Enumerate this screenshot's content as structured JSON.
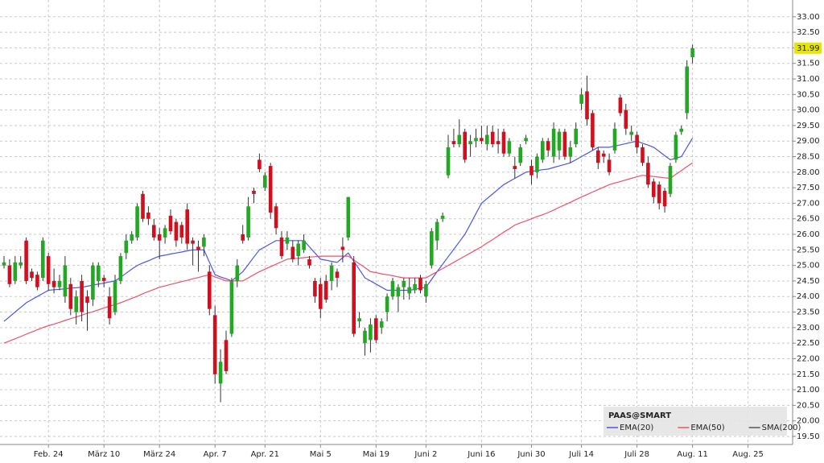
{
  "chart_data": {
    "type": "candlestick",
    "legend_title": "PAAS@SMART",
    "last_price": 31.99,
    "up_color": "#22a822",
    "down_color": "#d0101e",
    "ylim": [
      19.24,
      33.28
    ],
    "yticks": [
      {
        "value": 19.5,
        "label": "19.50"
      },
      {
        "value": 20,
        "label": "20.00"
      },
      {
        "value": 20.5,
        "label": "20.50"
      },
      {
        "value": 21,
        "label": "21.00"
      },
      {
        "value": 21.5,
        "label": "21.50"
      },
      {
        "value": 22,
        "label": "22.00"
      },
      {
        "value": 22.5,
        "label": "22.50"
      },
      {
        "value": 23,
        "label": "23.00"
      },
      {
        "value": 23.5,
        "label": "23.50"
      },
      {
        "value": 24,
        "label": "24.00"
      },
      {
        "value": 24.5,
        "label": "24.50"
      },
      {
        "value": 25,
        "label": "25.00"
      },
      {
        "value": 25.5,
        "label": "25.50"
      },
      {
        "value": 26,
        "label": "26.00"
      },
      {
        "value": 26.5,
        "label": "26.50"
      },
      {
        "value": 27,
        "label": "27.00"
      },
      {
        "value": 27.5,
        "label": "27.50"
      },
      {
        "value": 28,
        "label": "28.00"
      },
      {
        "value": 28.5,
        "label": "28.50"
      },
      {
        "value": 29,
        "label": "29.00"
      },
      {
        "value": 29.5,
        "label": "29.50"
      },
      {
        "value": 30,
        "label": "30.00"
      },
      {
        "value": 30.5,
        "label": "30.50"
      },
      {
        "value": 31,
        "label": "31.00"
      },
      {
        "value": 31.5,
        "label": "31.50"
      },
      {
        "value": 32,
        "label": "32.00"
      },
      {
        "value": 32.5,
        "label": "32.50"
      },
      {
        "value": 33,
        "label": "33.00"
      }
    ],
    "grid": true,
    "categories": [
      null,
      null,
      null,
      null,
      null,
      null,
      null,
      null,
      "Feb. 24",
      null,
      null,
      null,
      null,
      null,
      null,
      null,
      null,
      null,
      "März 10",
      null,
      null,
      null,
      null,
      null,
      null,
      null,
      null,
      null,
      "März 24",
      null,
      null,
      null,
      null,
      null,
      null,
      null,
      null,
      null,
      "Apr. 7",
      null,
      null,
      null,
      null,
      null,
      null,
      null,
      null,
      "Apr. 21",
      null,
      null,
      null,
      null,
      null,
      null,
      null,
      null,
      null,
      "Mai 5",
      null,
      null,
      null,
      null,
      null,
      null,
      null,
      null,
      null,
      "Mai 19",
      null,
      null,
      null,
      null,
      null,
      null,
      null,
      null,
      "Juni 2",
      null,
      null,
      null,
      null,
      null,
      null,
      null,
      null,
      null,
      "Juni 16",
      null,
      null,
      null,
      null,
      null,
      null,
      null,
      null,
      "Juni 30",
      null,
      null,
      null,
      null,
      null,
      null,
      null,
      null,
      "Juli 14",
      null,
      null,
      null,
      null,
      null,
      null,
      null,
      null,
      null,
      "Juli 28",
      null,
      null,
      null,
      null,
      null,
      null,
      null,
      null,
      null,
      "Aug. 11",
      null,
      null,
      null,
      null,
      null,
      null,
      null,
      null,
      null,
      "Aug. 25"
    ],
    "open": [
      25.0,
      25.0,
      24.5,
      25.0,
      25.8,
      24.8,
      24.7,
      24.6,
      25.3,
      24.5,
      24.3,
      24.0,
      24.4,
      23.5,
      24.5,
      24.0,
      23.9,
      24.5,
      24.6,
      24.0,
      23.5,
      24.5,
      25.4,
      25.8,
      25.9,
      27.3,
      26.7,
      26.3,
      26.0,
      25.9,
      26.6,
      26.4,
      26.3,
      26.8,
      25.8,
      25.6,
      25.6,
      24.8,
      23.4,
      21.2,
      22.6,
      22.8,
      24.5,
      26.0,
      25.9,
      27.4,
      28.4,
      27.5,
      28.2,
      26.9,
      25.9,
      25.7,
      25.6,
      25.3,
      25.5,
      25.2,
      24.5,
      24.4,
      24.5,
      24.5,
      24.8,
      25.6,
      25.9,
      25.1,
      23.2,
      22.5,
      22.6,
      23.3,
      23.0,
      23.5,
      24.0,
      24.0,
      24.3,
      24.1,
      24.2,
      24.6,
      24.0,
      25.0,
      25.8,
      26.5,
      27.9,
      29.0,
      28.9,
      29.3,
      28.9,
      29.0,
      29.1,
      28.9,
      29.3,
      29.0,
      29.3,
      28.6,
      28.2,
      28.3,
      29.0,
      28.2,
      28.0,
      28.4,
      29.0,
      28.5,
      28.7,
      29.3,
      28.5,
      28.9,
      30.2,
      30.6,
      29.9,
      28.7,
      28.6,
      28.4,
      28.7,
      30.4,
      30.0,
      29.2,
      29.2,
      28.8,
      28.3,
      27.7,
      27.6,
      27.4,
      27.3,
      28.4,
      29.3,
      29.9,
      31.7,
      null,
      null,
      null,
      null,
      null,
      null,
      null,
      null,
      null,
      null
    ],
    "high": [
      25.3,
      25.2,
      25.3,
      25.3,
      25.9,
      24.9,
      24.8,
      25.9,
      25.4,
      24.9,
      24.7,
      25.3,
      24.6,
      24.2,
      24.7,
      24.2,
      25.1,
      25.1,
      24.7,
      24.3,
      24.7,
      25.4,
      26.0,
      26.1,
      27.0,
      27.4,
      26.9,
      26.5,
      26.2,
      26.3,
      26.8,
      26.5,
      26.4,
      27.0,
      25.9,
      25.8,
      26.0,
      25.0,
      23.7,
      22.3,
      22.9,
      24.6,
      25.2,
      26.3,
      27.2,
      27.5,
      28.6,
      28.0,
      28.3,
      27.0,
      26.1,
      26.1,
      25.8,
      25.8,
      26.0,
      25.3,
      24.6,
      24.6,
      24.7,
      25.1,
      24.9,
      25.9,
      27.2,
      25.3,
      23.5,
      23.0,
      23.3,
      23.4,
      23.3,
      24.1,
      24.6,
      24.4,
      24.6,
      24.6,
      24.6,
      24.7,
      24.5,
      26.2,
      26.5,
      26.7,
      29.2,
      29.4,
      29.7,
      29.4,
      29.2,
      29.4,
      29.5,
      29.5,
      29.5,
      29.4,
      29.4,
      29.1,
      28.5,
      28.9,
      29.2,
      28.4,
      28.6,
      29.1,
      29.1,
      29.6,
      29.4,
      29.4,
      29.0,
      29.6,
      30.7,
      31.1,
      30.0,
      28.8,
      28.7,
      28.6,
      29.6,
      30.5,
      30.2,
      29.5,
      29.3,
      28.9,
      28.5,
      27.8,
      27.7,
      27.5,
      28.3,
      29.3,
      29.5,
      31.6,
      32.1,
      null,
      null,
      null,
      null,
      null,
      null,
      null,
      null,
      null,
      null
    ],
    "low": [
      24.9,
      24.3,
      24.4,
      24.9,
      24.4,
      24.5,
      24.2,
      24.5,
      24.2,
      24.1,
      24.2,
      23.8,
      23.4,
      23.1,
      23.2,
      22.9,
      23.7,
      24.3,
      24.3,
      23.1,
      23.4,
      24.4,
      25.2,
      25.7,
      25.8,
      26.4,
      26.3,
      25.8,
      25.2,
      25.7,
      26.0,
      25.6,
      25.7,
      25.5,
      25.0,
      24.8,
      25.3,
      23.4,
      21.2,
      20.6,
      21.5,
      22.7,
      24.3,
      25.7,
      25.8,
      27.0,
      28.0,
      27.4,
      26.5,
      26.0,
      25.2,
      25.5,
      25.1,
      25.0,
      25.4,
      24.9,
      23.8,
      23.3,
      23.8,
      24.2,
      24.3,
      25.1,
      25.8,
      22.7,
      23.0,
      22.1,
      22.2,
      22.5,
      22.8,
      23.2,
      23.9,
      23.5,
      23.9,
      23.9,
      24.1,
      24.1,
      23.8,
      24.9,
      25.5,
      26.4,
      27.8,
      28.8,
      28.8,
      28.3,
      28.5,
      28.8,
      28.9,
      28.7,
      28.8,
      28.6,
      28.5,
      28.5,
      27.8,
      28.2,
      28.9,
      27.6,
      27.8,
      28.3,
      28.5,
      28.3,
      28.4,
      28.4,
      28.3,
      28.8,
      30.0,
      29.5,
      28.7,
      28.1,
      28.3,
      27.9,
      28.6,
      29.8,
      29.2,
      29.0,
      28.6,
      28.2,
      27.5,
      27.0,
      26.8,
      26.7,
      27.2,
      28.3,
      29.2,
      29.7,
      31.5,
      null,
      null,
      null,
      null,
      null,
      null,
      null,
      null,
      null,
      null
    ],
    "close": [
      25.1,
      24.4,
      25.1,
      25.1,
      24.5,
      24.6,
      24.3,
      25.8,
      24.4,
      24.3,
      24.5,
      25.0,
      23.6,
      24.0,
      23.5,
      23.8,
      25.0,
      25.0,
      24.5,
      23.3,
      24.5,
      25.3,
      25.8,
      26.0,
      26.9,
      26.5,
      26.5,
      25.9,
      25.8,
      26.2,
      26.1,
      25.8,
      25.9,
      25.7,
      25.7,
      25.5,
      25.9,
      23.6,
      21.5,
      21.9,
      21.6,
      24.5,
      25.0,
      25.8,
      26.9,
      27.3,
      28.1,
      27.9,
      26.7,
      26.2,
      25.3,
      25.9,
      25.2,
      25.7,
      25.8,
      25.0,
      24.0,
      23.6,
      23.9,
      25.0,
      24.6,
      25.5,
      27.2,
      22.8,
      23.3,
      22.9,
      23.1,
      22.6,
      23.2,
      24.0,
      24.5,
      24.3,
      24.5,
      24.3,
      24.4,
      24.2,
      24.4,
      26.1,
      26.4,
      26.6,
      28.8,
      28.9,
      29.2,
      28.4,
      29.0,
      29.1,
      29.0,
      29.2,
      28.9,
      28.9,
      28.6,
      29.0,
      28.1,
      28.8,
      29.1,
      27.9,
      28.5,
      29.0,
      28.7,
      29.4,
      29.3,
      28.5,
      28.8,
      29.4,
      30.5,
      29.7,
      28.8,
      28.3,
      28.5,
      28.0,
      29.4,
      29.9,
      29.4,
      29.3,
      28.8,
      28.3,
      27.6,
      27.2,
      27.0,
      26.9,
      28.2,
      29.2,
      29.4,
      31.4,
      31.99,
      null,
      null,
      null,
      null,
      null,
      null,
      null,
      null,
      null,
      null
    ],
    "series": [
      {
        "name": "EMA(20)",
        "color": "#4a55e8",
        "values": [
          23.2,
          23.35,
          23.5,
          23.65,
          23.8,
          23.9,
          24.0,
          24.1,
          24.2,
          24.22,
          24.23,
          24.25,
          24.27,
          24.28,
          24.3,
          24.33,
          24.37,
          24.4,
          24.43,
          24.47,
          24.5,
          24.62,
          24.75,
          24.88,
          25.0,
          25.08,
          25.15,
          25.23,
          25.3,
          25.33,
          25.37,
          25.4,
          25.43,
          25.47,
          25.5,
          25.5,
          25.5,
          25.1,
          24.7,
          24.63,
          24.57,
          24.5,
          24.65,
          24.8,
          25.03,
          25.27,
          25.5,
          25.6,
          25.7,
          25.8,
          25.8,
          25.8,
          25.8,
          25.8,
          25.8,
          25.6,
          25.4,
          25.2,
          25.17,
          25.13,
          25.1,
          25.25,
          25.4,
          25.13,
          24.87,
          24.6,
          24.5,
          24.4,
          24.3,
          24.2,
          24.2,
          24.2,
          24.2,
          24.2,
          24.23,
          24.27,
          24.3,
          24.55,
          24.8,
          25.04,
          25.28,
          25.52,
          25.76,
          26.0,
          26.33,
          26.67,
          27.0,
          27.15,
          27.3,
          27.45,
          27.6,
          27.7,
          27.8,
          27.9,
          28.0,
          28.03,
          28.05,
          28.08,
          28.1,
          28.15,
          28.2,
          28.25,
          28.3,
          28.4,
          28.5,
          28.6,
          28.7,
          28.8,
          28.8,
          28.8,
          28.84,
          28.88,
          28.92,
          28.96,
          29.0,
          28.93,
          28.87,
          28.8,
          28.67,
          28.53,
          28.4,
          28.45,
          28.5,
          28.8,
          29.1,
          null,
          null,
          null,
          null,
          null,
          null,
          null,
          null,
          null,
          null
        ]
      },
      {
        "name": "EMA(50)",
        "color": "#f0506a",
        "values": [
          22.5,
          22.57,
          22.64,
          22.71,
          22.79,
          22.86,
          22.93,
          23.0,
          23.06,
          23.11,
          23.17,
          23.23,
          23.29,
          23.34,
          23.4,
          23.46,
          23.51,
          23.57,
          23.63,
          23.69,
          23.74,
          23.8,
          23.87,
          23.94,
          24.01,
          24.09,
          24.16,
          24.23,
          24.3,
          24.34,
          24.39,
          24.43,
          24.48,
          24.52,
          24.57,
          24.61,
          24.66,
          24.7,
          24.63,
          24.57,
          24.5,
          24.5,
          24.5,
          24.5,
          24.6,
          24.7,
          24.8,
          24.88,
          24.96,
          25.04,
          25.12,
          25.2,
          25.22,
          25.23,
          25.25,
          25.27,
          25.28,
          25.3,
          25.3,
          25.3,
          25.3,
          25.3,
          25.3,
          25.18,
          25.05,
          24.93,
          24.8,
          24.77,
          24.73,
          24.7,
          24.67,
          24.63,
          24.6,
          24.6,
          24.6,
          24.6,
          24.6,
          24.7,
          24.8,
          24.9,
          25.0,
          25.1,
          25.2,
          25.3,
          25.4,
          25.5,
          25.6,
          25.72,
          25.83,
          25.95,
          26.07,
          26.18,
          26.3,
          26.37,
          26.43,
          26.5,
          26.57,
          26.63,
          26.7,
          26.78,
          26.87,
          26.95,
          27.03,
          27.12,
          27.2,
          27.28,
          27.36,
          27.44,
          27.52,
          27.6,
          27.65,
          27.7,
          27.75,
          27.8,
          27.85,
          27.9,
          27.88,
          27.86,
          27.84,
          27.82,
          27.8,
          27.93,
          28.05,
          28.18,
          28.3,
          null,
          null,
          null,
          null,
          null,
          null,
          null,
          null,
          null,
          null
        ]
      },
      {
        "name": "SMA(200)",
        "color": "#555555"
      }
    ]
  }
}
